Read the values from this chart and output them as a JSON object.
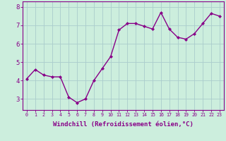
{
  "x": [
    0,
    1,
    2,
    3,
    4,
    5,
    6,
    7,
    8,
    9,
    10,
    11,
    12,
    13,
    14,
    15,
    16,
    17,
    18,
    19,
    20,
    21,
    22,
    23
  ],
  "y": [
    4.1,
    4.6,
    4.3,
    4.2,
    4.2,
    3.1,
    2.8,
    3.0,
    4.0,
    4.65,
    5.3,
    6.75,
    7.1,
    7.1,
    6.95,
    6.8,
    7.7,
    6.8,
    6.35,
    6.25,
    6.55,
    7.1,
    7.65,
    7.5
  ],
  "line_color": "#880088",
  "marker": "D",
  "marker_size": 2.0,
  "linewidth": 1.0,
  "bg_color": "#cceedd",
  "grid_color": "#aacccc",
  "xlabel": "Windchill (Refroidissement éolien,°C)",
  "xlabel_fontsize": 6.5,
  "yticks": [
    3,
    4,
    5,
    6,
    7,
    8
  ],
  "xtick_fontsize": 4.8,
  "ytick_fontsize": 6.5,
  "ylim": [
    2.4,
    8.3
  ],
  "xlim": [
    -0.5,
    23.5
  ],
  "tick_color": "#880088",
  "label_color": "#880088",
  "axis_color": "#880088"
}
